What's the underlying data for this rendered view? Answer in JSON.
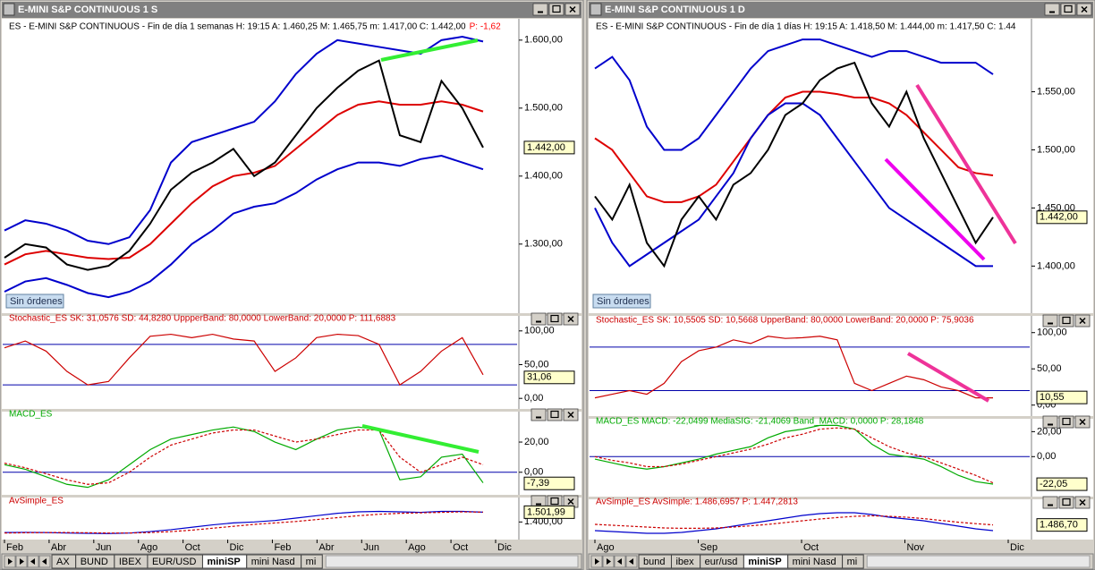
{
  "windows": [
    {
      "title": "E-MINI S&P CONTINUOUS 1 S",
      "button": "Sin órdenes",
      "months": [
        "Feb",
        "Abr",
        "Jun",
        "Ago",
        "Oct",
        "Dic",
        "Feb",
        "Abr",
        "Jun",
        "Ago",
        "Oct",
        "Dic"
      ],
      "tabs": [
        "AX",
        "BUND",
        "IBEX",
        "EUR/USD",
        "miniSP",
        "mini Nasd",
        "mi"
      ],
      "active_tab": "miniSP",
      "panels": [
        {
          "header": "ES - E-MINI S&P CONTINUOUS - Fin de día 1 semanas  H: 19:15  A: 1.460,25  M: 1.465,75  m: 1.417,00  C: 1.442,00",
          "header_note": "P: -1,62",
          "header_color": "#000000",
          "ylim": [
            1201,
            1609
          ],
          "yticks": [
            {
              "value": 1600,
              "label": "1.600,00"
            },
            {
              "value": 1500,
              "label": "1.500,00"
            },
            {
              "value": 1400,
              "label": "1.400,00"
            },
            {
              "value": 1300,
              "label": "1.300,00"
            }
          ],
          "tag": {
            "value": 1442,
            "label": "1.442,00"
          },
          "series": [
            {
              "color": "#0000cc",
              "values": [
                1320,
                1335,
                1330,
                1320,
                1305,
                1300,
                1310,
                1350,
                1420,
                1450,
                1460,
                1470,
                1480,
                1510,
                1550,
                1580,
                1600,
                1595,
                1590,
                1585,
                1580,
                1600,
                1605,
                1598
              ]
            },
            {
              "color": "#dd0000",
              "values": [
                1270,
                1285,
                1290,
                1285,
                1280,
                1278,
                1280,
                1300,
                1330,
                1360,
                1385,
                1400,
                1405,
                1415,
                1440,
                1465,
                1490,
                1505,
                1510,
                1505,
                1505,
                1510,
                1505,
                1495
              ]
            },
            {
              "color": "#0000cc",
              "values": [
                1230,
                1245,
                1250,
                1240,
                1228,
                1222,
                1230,
                1245,
                1270,
                1300,
                1320,
                1345,
                1355,
                1360,
                1375,
                1395,
                1410,
                1420,
                1420,
                1415,
                1425,
                1430,
                1420,
                1410
              ]
            },
            {
              "color": "#000000",
              "values": [
                1280,
                1300,
                1295,
                1270,
                1262,
                1268,
                1290,
                1330,
                1380,
                1405,
                1420,
                1440,
                1400,
                1420,
                1460,
                1500,
                1530,
                1555,
                1570,
                1460,
                1450,
                1540,
                1500,
                1442
              ]
            }
          ]
        },
        {
          "header": "Stochastic_ES  SK: 31,0576  SD: 44,8280  UppperBand: 80,0000  LowerBand: 20,0000  P: 111,6883",
          "header_color": "#cc0000",
          "ylim": [
            -13,
            113
          ],
          "yticks": [
            {
              "value": 100,
              "label": "100,00"
            },
            {
              "value": 50,
              "label": "50,00"
            },
            {
              "value": 0,
              "label": "0,00"
            }
          ],
          "bands": [
            80,
            20
          ],
          "tag": {
            "value": 31.06,
            "label": "31,06"
          },
          "series": [
            {
              "color": "#cc0000",
              "values": [
                75,
                85,
                70,
                40,
                20,
                25,
                60,
                92,
                95,
                90,
                95,
                88,
                85,
                40,
                60,
                90,
                95,
                93,
                80,
                20,
                40,
                70,
                90,
                35
              ]
            }
          ]
        },
        {
          "header": "MACD_ES",
          "header_color": "#00aa00",
          "ylim": [
            -12,
            39
          ],
          "yticks": [
            {
              "value": 20,
              "label": "20,00"
            },
            {
              "value": 0,
              "label": "0,00"
            }
          ],
          "bands": [
            0
          ],
          "tag": {
            "value": -7.39,
            "label": "-7,39"
          },
          "series": [
            {
              "color": "#00aa00",
              "values": [
                5,
                2,
                -3,
                -8,
                -10,
                -5,
                5,
                15,
                22,
                25,
                28,
                30,
                27,
                20,
                15,
                22,
                28,
                30,
                28,
                -5,
                -3,
                10,
                12,
                -7
              ]
            },
            {
              "color": "#cc0000",
              "values": [
                6,
                3,
                -1,
                -5,
                -8,
                -7,
                0,
                10,
                18,
                22,
                26,
                28,
                28,
                24,
                20,
                22,
                25,
                28,
                28,
                10,
                0,
                5,
                10,
                5
              ]
            }
          ]
        },
        {
          "header": "AvSimple_ES",
          "header_color": "#cc0000",
          "ylim": [
            1245,
            1654
          ],
          "yticks": [
            {
              "value": 1400,
              "label": "1.400,00"
            }
          ],
          "tag": {
            "value": 1501.99,
            "label": "1.501,99"
          },
          "series": [
            {
              "color": "#0000cc",
              "values": [
                1290,
                1292,
                1290,
                1285,
                1282,
                1280,
                1285,
                1300,
                1320,
                1345,
                1370,
                1390,
                1400,
                1415,
                1440,
                1465,
                1490,
                1505,
                1510,
                1505,
                1500,
                1510,
                1510,
                1502
              ]
            },
            {
              "color": "#cc0000",
              "values": [
                1285,
                1288,
                1290,
                1290,
                1288,
                1285,
                1285,
                1290,
                1300,
                1315,
                1335,
                1355,
                1375,
                1390,
                1405,
                1425,
                1445,
                1465,
                1480,
                1490,
                1495,
                1500,
                1505,
                1502
              ]
            }
          ]
        }
      ]
    },
    {
      "title": "E-MINI S&P CONTINUOUS 1 D",
      "button": "Sin órdenes",
      "months": [
        "Ago",
        "Sep",
        "Oct",
        "Nov",
        "Dic"
      ],
      "tabs": [
        "bund",
        "ibex",
        "eur/usd",
        "miniSP",
        "mini Nasd",
        "mi"
      ],
      "active_tab": "miniSP",
      "panels": [
        {
          "header": "ES - E-MINI S&P CONTINUOUS - Fin de día 1 días  H: 19:15  A: 1.418,50  M: 1.444,00  m: 1.417,50  C: 1.44",
          "header_color": "#000000",
          "ylim": [
            1361,
            1602
          ],
          "yticks": [
            {
              "value": 1550,
              "label": "1.550,00"
            },
            {
              "value": 1500,
              "label": "1.500,00"
            },
            {
              "value": 1450,
              "label": "1.450,00"
            },
            {
              "value": 1400,
              "label": "1.400,00"
            }
          ],
          "tag": {
            "value": 1442,
            "label": "1.442,00"
          },
          "series": [
            {
              "color": "#0000cc",
              "values": [
                1570,
                1580,
                1560,
                1520,
                1500,
                1500,
                1510,
                1530,
                1550,
                1570,
                1585,
                1590,
                1595,
                1595,
                1590,
                1585,
                1580,
                1585,
                1585,
                1580,
                1575,
                1575,
                1575,
                1565
              ]
            },
            {
              "color": "#dd0000",
              "values": [
                1510,
                1500,
                1480,
                1460,
                1455,
                1455,
                1460,
                1470,
                1490,
                1510,
                1530,
                1545,
                1550,
                1550,
                1548,
                1545,
                1545,
                1540,
                1530,
                1515,
                1500,
                1485,
                1480,
                1478
              ]
            },
            {
              "color": "#0000cc",
              "values": [
                1450,
                1420,
                1400,
                1410,
                1420,
                1430,
                1440,
                1460,
                1480,
                1510,
                1530,
                1540,
                1540,
                1530,
                1510,
                1490,
                1470,
                1450,
                1440,
                1430,
                1420,
                1410,
                1400,
                1400
              ]
            },
            {
              "color": "#000000",
              "values": [
                1460,
                1440,
                1470,
                1420,
                1400,
                1440,
                1460,
                1440,
                1470,
                1480,
                1500,
                1530,
                1540,
                1560,
                1570,
                1575,
                1540,
                1520,
                1550,
                1510,
                1480,
                1450,
                1420,
                1442
              ]
            }
          ]
        },
        {
          "header": "Stochastic_ES  SK: 10,5505  SD: 10,5668  UpperBand: 80,0000  LowerBand: 20,0000  P: 75,9036",
          "header_color": "#cc0000",
          "ylim": [
            -9,
            112
          ],
          "yticks": [
            {
              "value": 100,
              "label": "100,00"
            },
            {
              "value": 50,
              "label": "50,00"
            },
            {
              "value": 0,
              "label": "0,00"
            }
          ],
          "bands": [
            80,
            20
          ],
          "tag": {
            "value": 10.55,
            "label": "10,55"
          },
          "series": [
            {
              "color": "#cc0000",
              "values": [
                10,
                15,
                20,
                15,
                30,
                60,
                75,
                80,
                90,
                85,
                95,
                92,
                93,
                95,
                90,
                30,
                20,
                30,
                40,
                35,
                25,
                20,
                10,
                10
              ]
            }
          ]
        },
        {
          "header": "MACD_ES  MACD: -22,0499  MediaSIG: -21,4069  Band_MACD: 0,0000  P: 28,1848",
          "header_color": "#00aa00",
          "ylim": [
            -27,
            26
          ],
          "yticks": [
            {
              "value": 20,
              "label": "20,00"
            },
            {
              "value": 0,
              "label": "0,00"
            }
          ],
          "bands": [
            0
          ],
          "tag": {
            "value": -22.05,
            "label": "-22,05"
          },
          "series": [
            {
              "color": "#00aa00",
              "values": [
                -2,
                -5,
                -8,
                -10,
                -8,
                -5,
                -2,
                2,
                5,
                8,
                15,
                20,
                22,
                25,
                25,
                22,
                10,
                2,
                0,
                -2,
                -8,
                -15,
                -20,
                -22
              ]
            },
            {
              "color": "#cc0000",
              "values": [
                0,
                -3,
                -5,
                -8,
                -8,
                -6,
                -3,
                0,
                3,
                6,
                10,
                15,
                18,
                22,
                23,
                22,
                15,
                8,
                3,
                0,
                -5,
                -10,
                -15,
                -21
              ]
            }
          ]
        },
        {
          "header": "AvSimple_ES  AvSimple: 1.486,6957  P: 1.447,2813",
          "header_color": "#cc0000",
          "ylim": [
            1420,
            1580
          ],
          "tag": {
            "value": 1486.7,
            "label": "1.486,70"
          },
          "series": [
            {
              "color": "#0000cc",
              "values": [
                1455,
                1450,
                1445,
                1440,
                1440,
                1445,
                1455,
                1465,
                1480,
                1495,
                1510,
                1525,
                1540,
                1550,
                1555,
                1555,
                1545,
                1530,
                1520,
                1510,
                1495,
                1480,
                1465,
                1455
              ]
            },
            {
              "color": "#cc0000",
              "values": [
                1490,
                1485,
                1480,
                1475,
                1470,
                1468,
                1468,
                1470,
                1475,
                1482,
                1490,
                1500,
                1510,
                1520,
                1528,
                1535,
                1538,
                1535,
                1530,
                1522,
                1512,
                1502,
                1494,
                1487
              ]
            }
          ]
        }
      ]
    }
  ]
}
